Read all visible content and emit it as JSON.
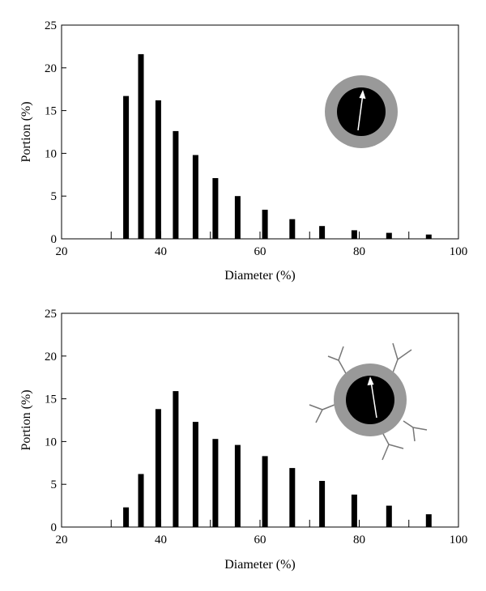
{
  "chart_data": [
    {
      "type": "bar",
      "xlabel": "Diameter (%)",
      "ylabel": "Portion (%)",
      "xlim": [
        20,
        100
      ],
      "ylim": [
        0,
        25
      ],
      "xticks": [
        20,
        40,
        60,
        80,
        100
      ],
      "yticks": [
        0,
        5,
        10,
        15,
        20,
        25
      ],
      "x": [
        33,
        36,
        39.5,
        43,
        47,
        51,
        55.5,
        61,
        66.5,
        72.5,
        79,
        86,
        94
      ],
      "values": [
        16.7,
        21.6,
        16.2,
        12.6,
        9.8,
        7.1,
        5.0,
        3.4,
        2.3,
        1.5,
        1.0,
        0.7,
        0.5
      ],
      "color": "#000000",
      "grid": false,
      "inset": "particle-core-shell",
      "inset_colors": {
        "shell": "#999999",
        "core": "#000000",
        "arrow": "#ffffff"
      }
    },
    {
      "type": "bar",
      "xlabel": "Diameter (%)",
      "ylabel": "Portion (%)",
      "xlim": [
        20,
        100
      ],
      "ylim": [
        0,
        25
      ],
      "xticks": [
        20,
        40,
        60,
        80,
        100
      ],
      "yticks": [
        0,
        5,
        10,
        15,
        20,
        25
      ],
      "x": [
        33,
        36,
        39.5,
        43,
        47,
        51,
        55.5,
        61,
        66.5,
        72.5,
        79,
        86,
        94
      ],
      "values": [
        2.3,
        6.2,
        13.8,
        15.9,
        12.3,
        10.3,
        9.6,
        8.3,
        6.9,
        5.4,
        3.8,
        2.5,
        1.5
      ],
      "color": "#000000",
      "grid": false,
      "inset": "particle-core-shell-with-branches",
      "inset_colors": {
        "shell": "#999999",
        "core": "#000000",
        "arrow": "#ffffff",
        "branch": "#777777"
      }
    }
  ]
}
